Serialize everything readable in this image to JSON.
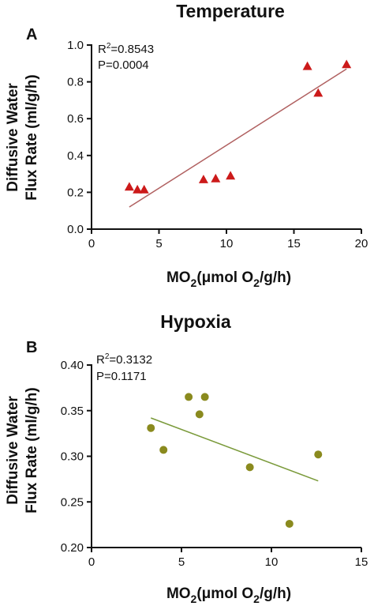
{
  "chart_data": [
    {
      "type": "scatter",
      "panel_label": "A",
      "title": "Temperature",
      "ylabel_line1": "Diffusive Water",
      "ylabel_line2": "Flux Rate (ml/g/h)",
      "xlabel": {
        "pre": "MO",
        "sub1": "2",
        "mid": "(μmol O",
        "sub2": "2",
        "post": "/g/h)"
      },
      "stats": {
        "r2_prefix": "R",
        "r2_sup": "2",
        "r2_value": "=0.8543",
        "p": "P=0.0004"
      },
      "xlim": [
        0,
        20
      ],
      "ylim": [
        0.0,
        1.0
      ],
      "xticks": [
        "0",
        "5",
        "10",
        "15",
        "20"
      ],
      "xtick_values": [
        0,
        5,
        10,
        15,
        20
      ],
      "yticks": [
        "0.0",
        "0.2",
        "0.4",
        "0.6",
        "0.8",
        "1.0"
      ],
      "ytick_values": [
        0.0,
        0.2,
        0.4,
        0.6,
        0.8,
        1.0
      ],
      "marker": "triangle",
      "marker_color": "#cc1a1a",
      "line_color": "#b06060",
      "points": [
        {
          "x": 2.8,
          "y": 0.23
        },
        {
          "x": 3.4,
          "y": 0.215
        },
        {
          "x": 3.9,
          "y": 0.215
        },
        {
          "x": 8.3,
          "y": 0.27
        },
        {
          "x": 9.2,
          "y": 0.275
        },
        {
          "x": 10.3,
          "y": 0.29
        },
        {
          "x": 16.0,
          "y": 0.885
        },
        {
          "x": 16.8,
          "y": 0.74
        },
        {
          "x": 18.9,
          "y": 0.895
        }
      ],
      "fit_line": [
        {
          "x": 2.8,
          "y": 0.12
        },
        {
          "x": 18.9,
          "y": 0.87
        }
      ]
    },
    {
      "type": "scatter",
      "panel_label": "B",
      "title": "Hypoxia",
      "ylabel_line1": "Diffusive Water",
      "ylabel_line2": "Flux Rate (ml/g/h)",
      "xlabel": {
        "pre": "MO",
        "sub1": "2",
        "mid": "(μmol O",
        "sub2": "2",
        "post": "/g/h)"
      },
      "stats": {
        "r2_prefix": "R",
        "r2_sup": "2",
        "r2_value": "=0.3132",
        "p": "P=0.1171"
      },
      "xlim": [
        0,
        15
      ],
      "ylim": [
        0.2,
        0.4
      ],
      "xticks": [
        "0",
        "5",
        "10",
        "15"
      ],
      "xtick_values": [
        0,
        5,
        10,
        15
      ],
      "yticks": [
        "0.20",
        "0.25",
        "0.30",
        "0.35",
        "0.40"
      ],
      "ytick_values": [
        0.2,
        0.25,
        0.3,
        0.35,
        0.4
      ],
      "marker": "circle",
      "marker_color": "#8a8a1e",
      "line_color": "#7a9a3a",
      "points": [
        {
          "x": 3.3,
          "y": 0.331
        },
        {
          "x": 4.0,
          "y": 0.307
        },
        {
          "x": 5.4,
          "y": 0.365
        },
        {
          "x": 6.0,
          "y": 0.346
        },
        {
          "x": 6.3,
          "y": 0.365
        },
        {
          "x": 8.8,
          "y": 0.288
        },
        {
          "x": 11.0,
          "y": 0.226
        },
        {
          "x": 12.6,
          "y": 0.302
        }
      ],
      "fit_line": [
        {
          "x": 3.3,
          "y": 0.342
        },
        {
          "x": 12.6,
          "y": 0.273
        }
      ]
    }
  ]
}
